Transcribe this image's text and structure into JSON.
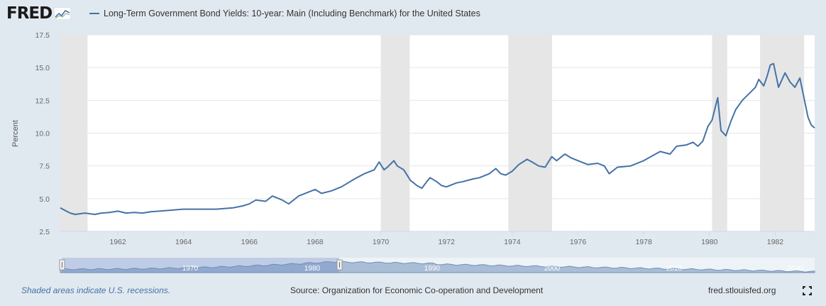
{
  "header": {
    "logo_text": "FRED",
    "legend_label": "Long-Term Government Bond Yields: 10-year: Main (Including Benchmark) for the United States"
  },
  "footer": {
    "note": "Shaded areas indicate U.S. recessions.",
    "source": "Source: Organization for Economic Co-operation and Development",
    "site": "fred.stlouisfed.org"
  },
  "icons": {
    "logo_graph": "line-graph-icon",
    "fullscreen": "fullscreen-icon"
  },
  "colors": {
    "line": "#4572a7",
    "recession": "#e6e6e6",
    "background": "#e1e9f0"
  },
  "chart_data": {
    "type": "line",
    "title": "Long-Term Government Bond Yields: 10-year: Main (Including Benchmark) for the United States",
    "ylabel": "Percent",
    "xlabel": "",
    "xlim": [
      1960.25,
      1983.2
    ],
    "ylim": [
      2.5,
      17.5
    ],
    "y_ticks": [
      "2.5",
      "5.0",
      "7.5",
      "10.0",
      "12.5",
      "15.0",
      "17.5"
    ],
    "x_ticks": [
      "1962",
      "1964",
      "1966",
      "1968",
      "1970",
      "1972",
      "1974",
      "1976",
      "1978",
      "1980",
      "1982"
    ],
    "grid": true,
    "recessions": [
      [
        1960.25,
        1961.08
      ],
      [
        1970.0,
        1970.88
      ],
      [
        1973.88,
        1975.21
      ],
      [
        1980.08,
        1980.54
      ],
      [
        1981.54,
        1982.88
      ]
    ],
    "series": [
      {
        "name": "Long-Term Government Bond Yields: 10-year: Main (Including Benchmark) for the United States",
        "x": [
          1960.25,
          1960.4,
          1960.55,
          1960.7,
          1961.0,
          1961.3,
          1961.5,
          1961.75,
          1962.0,
          1962.25,
          1962.5,
          1962.75,
          1963.0,
          1963.5,
          1964.0,
          1964.5,
          1965.0,
          1965.5,
          1965.8,
          1966.0,
          1966.2,
          1966.5,
          1966.7,
          1967.0,
          1967.2,
          1967.5,
          1967.8,
          1968.0,
          1968.2,
          1968.5,
          1968.8,
          1969.0,
          1969.2,
          1969.5,
          1969.8,
          1969.95,
          1970.1,
          1970.2,
          1970.4,
          1970.5,
          1970.7,
          1970.9,
          1971.1,
          1971.25,
          1971.4,
          1971.5,
          1971.7,
          1971.85,
          1972.0,
          1972.3,
          1972.5,
          1972.8,
          1973.0,
          1973.3,
          1973.5,
          1973.65,
          1973.8,
          1974.0,
          1974.2,
          1974.45,
          1974.6,
          1974.8,
          1975.0,
          1975.2,
          1975.35,
          1975.6,
          1975.8,
          1976.0,
          1976.3,
          1976.6,
          1976.8,
          1976.95,
          1977.2,
          1977.6,
          1978.0,
          1978.5,
          1978.8,
          1979.0,
          1979.3,
          1979.5,
          1979.65,
          1979.8,
          1979.95,
          1980.08,
          1980.2,
          1980.25,
          1980.35,
          1980.5,
          1980.65,
          1980.8,
          1981.0,
          1981.2,
          1981.4,
          1981.5,
          1981.65,
          1981.75,
          1981.85,
          1981.95,
          1982.1,
          1982.3,
          1982.45,
          1982.6,
          1982.75,
          1982.9,
          1983.0,
          1983.1,
          1983.2
        ],
        "values": [
          4.3,
          4.1,
          3.9,
          3.8,
          3.9,
          3.8,
          3.9,
          3.95,
          4.05,
          3.9,
          3.95,
          3.9,
          4.0,
          4.1,
          4.2,
          4.2,
          4.2,
          4.3,
          4.45,
          4.6,
          4.9,
          4.8,
          5.2,
          4.9,
          4.6,
          5.2,
          5.5,
          5.7,
          5.4,
          5.6,
          5.9,
          6.2,
          6.5,
          6.9,
          7.2,
          7.8,
          7.2,
          7.4,
          7.9,
          7.5,
          7.2,
          6.4,
          6.0,
          5.8,
          6.3,
          6.6,
          6.3,
          6.0,
          5.9,
          6.2,
          6.3,
          6.5,
          6.6,
          6.9,
          7.3,
          6.9,
          6.8,
          7.1,
          7.6,
          8.0,
          7.8,
          7.5,
          7.4,
          8.2,
          7.9,
          8.4,
          8.1,
          7.9,
          7.6,
          7.7,
          7.5,
          6.9,
          7.4,
          7.5,
          7.9,
          8.6,
          8.4,
          9.0,
          9.1,
          9.3,
          9.0,
          9.4,
          10.5,
          11.0,
          12.2,
          12.7,
          10.2,
          9.8,
          10.9,
          11.8,
          12.5,
          13.0,
          13.5,
          14.1,
          13.6,
          14.3,
          15.2,
          15.3,
          13.5,
          14.6,
          13.9,
          13.5,
          14.2,
          12.4,
          11.2,
          10.6,
          10.4
        ]
      }
    ]
  }
}
